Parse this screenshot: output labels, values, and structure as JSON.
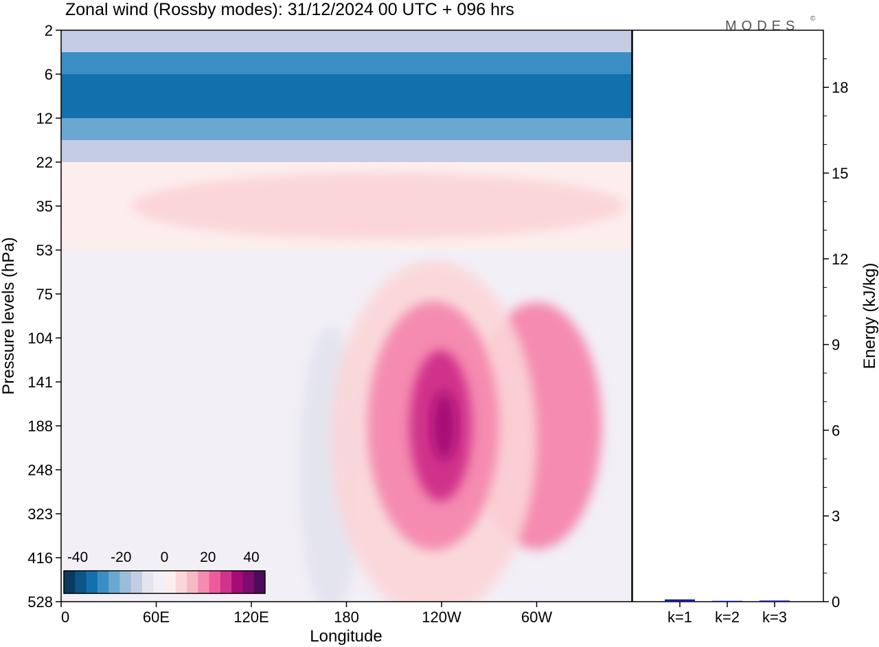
{
  "chart_data": [
    {
      "type": "heatmap",
      "title": "Zonal wind (Rossby modes):  31/12/2024  00 UTC  + 096 hrs",
      "xlabel": "Longitude",
      "ylabel": "Pressure levels (hPa)",
      "x_ticks": [
        "0",
        "60E",
        "120E",
        "180",
        "120W",
        "60W"
      ],
      "y_levels": [
        "2",
        "6",
        "12",
        "22",
        "35",
        "53",
        "75",
        "104",
        "141",
        "188",
        "248",
        "323",
        "416",
        "528"
      ],
      "colorbar": {
        "tick_labels": [
          "-40",
          "-20",
          "0",
          "20",
          "40"
        ],
        "colors": [
          "#0b3a5e",
          "#0d5488",
          "#1270ad",
          "#3b8ec4",
          "#6aa8d2",
          "#9bbcdb",
          "#c4cce3",
          "#e4e4ef",
          "#f2eff6",
          "#fdeeee",
          "#fbd6d8",
          "#f9b8c6",
          "#f58bb0",
          "#ec5b9b",
          "#d0338a",
          "#a60b78",
          "#7d0a6e",
          "#4e0a5c"
        ]
      },
      "fields": [
        {
          "shape": "band",
          "from": "2",
          "to": "4",
          "color": "#c4cce3"
        },
        {
          "shape": "band",
          "from": "4",
          "to": "6",
          "color": "#3b8ec4"
        },
        {
          "shape": "band",
          "from": "6",
          "to": "12",
          "color": "#1270ad"
        },
        {
          "shape": "band",
          "from": "12",
          "to": "16",
          "color": "#6aa8d2"
        },
        {
          "shape": "band",
          "from": "16",
          "to": "22",
          "color": "#c4cce3"
        },
        {
          "shape": "band",
          "from": "22",
          "to": "53",
          "color": "#fdeeee"
        },
        {
          "shape": "blob",
          "lon": 200,
          "level": "35",
          "color": "#fbd6d8"
        },
        {
          "shape": "blob",
          "lon": 235,
          "level": "188",
          "color": "#d0338a"
        },
        {
          "shape": "blob",
          "lon": 300,
          "level": "188",
          "color": "#f58bb0"
        },
        {
          "shape": "blob",
          "lon": 170,
          "level": "248",
          "color": "#e4e4ef"
        }
      ]
    },
    {
      "type": "bar",
      "ylabel": "Energy (kJ/kg)",
      "categories": [
        "k=1",
        "k=2",
        "k=3"
      ],
      "values": [
        0.08,
        0.03,
        0.04
      ],
      "ylim": [
        0,
        20
      ],
      "y_ticks": [
        "0",
        "3",
        "6",
        "9",
        "12",
        "15",
        "18"
      ],
      "bar_color": "#1a1aa0"
    }
  ],
  "brand": "MODES",
  "brand_mark": "©"
}
